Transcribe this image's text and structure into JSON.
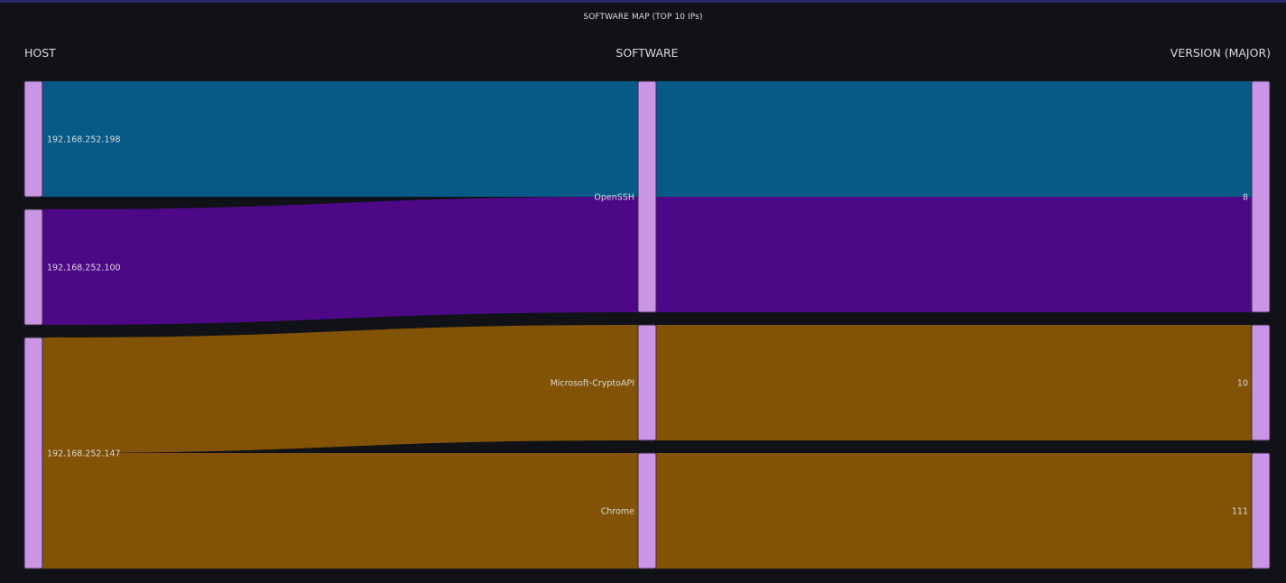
{
  "panel": {
    "title": "SOFTWARE MAP (TOP 10 IPs)"
  },
  "columns": {
    "host": "HOST",
    "software": "SOFTWARE",
    "version": "VERSION (MAJOR)"
  },
  "colors": {
    "background": "#111217",
    "node": "#ca95e5",
    "node_border": "#3a2a48",
    "flow_host_198": "#075a87",
    "flow_host_100": "#4d0888",
    "flow_host_147": "#825306"
  },
  "chart_data": {
    "type": "sankey",
    "title": "SOFTWARE MAP (TOP 10 IPs)",
    "levels": [
      "HOST",
      "SOFTWARE",
      "VERSION (MAJOR)"
    ],
    "nodes": [
      {
        "id": "h198",
        "label": "192.168.252.198",
        "level": 0
      },
      {
        "id": "h100",
        "label": "192.168.252.100",
        "level": 0
      },
      {
        "id": "h147",
        "label": "192.168.252.147",
        "level": 0
      },
      {
        "id": "sw_openssh",
        "label": "OpenSSH",
        "level": 1
      },
      {
        "id": "sw_crypto",
        "label": "Microsoft-CryptoAPI",
        "level": 1
      },
      {
        "id": "sw_chrome",
        "label": "Chrome",
        "level": 1
      },
      {
        "id": "v8",
        "label": "8",
        "level": 2
      },
      {
        "id": "v10",
        "label": "10",
        "level": 2
      },
      {
        "id": "v111",
        "label": "111",
        "level": 2
      }
    ],
    "paths": [
      {
        "host": "h198",
        "software": "sw_openssh",
        "version": "v8",
        "value": 1
      },
      {
        "host": "h100",
        "software": "sw_openssh",
        "version": "v8",
        "value": 1
      },
      {
        "host": "h147",
        "software": "sw_crypto",
        "version": "v10",
        "value": 1
      },
      {
        "host": "h147",
        "software": "sw_chrome",
        "version": "v111",
        "value": 1
      }
    ]
  }
}
